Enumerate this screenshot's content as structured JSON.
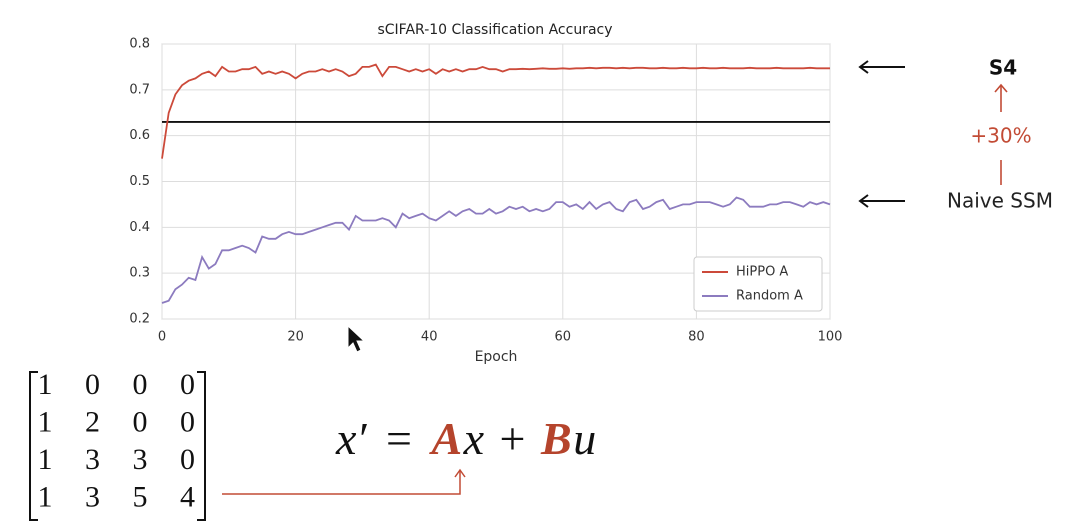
{
  "chart_data": {
    "type": "line",
    "title": "sCIFAR-10 Classification Accuracy",
    "x_label": "Epoch",
    "x": [
      0,
      1,
      2,
      3,
      4,
      5,
      6,
      7,
      8,
      9,
      10,
      11,
      12,
      13,
      14,
      15,
      16,
      17,
      18,
      19,
      20,
      21,
      22,
      23,
      24,
      25,
      26,
      27,
      28,
      29,
      30,
      31,
      32,
      33,
      34,
      35,
      36,
      37,
      38,
      39,
      40,
      41,
      42,
      43,
      44,
      45,
      46,
      47,
      48,
      49,
      50,
      51,
      52,
      53,
      54,
      55,
      56,
      57,
      58,
      59,
      60,
      61,
      62,
      63,
      64,
      65,
      66,
      67,
      68,
      69,
      70,
      71,
      72,
      73,
      74,
      75,
      76,
      77,
      78,
      79,
      80,
      81,
      82,
      83,
      84,
      85,
      86,
      87,
      88,
      89,
      90,
      91,
      92,
      93,
      94,
      95,
      96,
      97,
      98,
      99,
      100
    ],
    "series": [
      {
        "name": "HiPPO A",
        "color": "#cc4a3a",
        "values": [
          0.55,
          0.65,
          0.69,
          0.71,
          0.72,
          0.725,
          0.735,
          0.74,
          0.73,
          0.75,
          0.74,
          0.74,
          0.745,
          0.745,
          0.75,
          0.735,
          0.74,
          0.735,
          0.74,
          0.735,
          0.725,
          0.735,
          0.74,
          0.74,
          0.745,
          0.74,
          0.745,
          0.74,
          0.73,
          0.735,
          0.75,
          0.75,
          0.755,
          0.73,
          0.75,
          0.75,
          0.745,
          0.74,
          0.745,
          0.74,
          0.745,
          0.735,
          0.745,
          0.74,
          0.745,
          0.74,
          0.745,
          0.745,
          0.75,
          0.745,
          0.745,
          0.74,
          0.745,
          0.745,
          0.746,
          0.745,
          0.746,
          0.747,
          0.746,
          0.746,
          0.747,
          0.746,
          0.747,
          0.747,
          0.748,
          0.747,
          0.748,
          0.748,
          0.747,
          0.748,
          0.747,
          0.748,
          0.748,
          0.747,
          0.747,
          0.748,
          0.747,
          0.747,
          0.748,
          0.747,
          0.747,
          0.748,
          0.747,
          0.747,
          0.748,
          0.747,
          0.747,
          0.747,
          0.748,
          0.747,
          0.747,
          0.747,
          0.748,
          0.747,
          0.747,
          0.747,
          0.747,
          0.748,
          0.747,
          0.747,
          0.747
        ]
      },
      {
        "name": "Random A",
        "color": "#8c7bbf",
        "values": [
          0.235,
          0.24,
          0.265,
          0.275,
          0.29,
          0.285,
          0.335,
          0.31,
          0.32,
          0.35,
          0.35,
          0.355,
          0.36,
          0.355,
          0.345,
          0.38,
          0.375,
          0.375,
          0.385,
          0.39,
          0.385,
          0.385,
          0.39,
          0.395,
          0.4,
          0.405,
          0.41,
          0.41,
          0.395,
          0.425,
          0.415,
          0.415,
          0.415,
          0.42,
          0.415,
          0.4,
          0.43,
          0.42,
          0.425,
          0.43,
          0.42,
          0.415,
          0.425,
          0.435,
          0.425,
          0.435,
          0.44,
          0.43,
          0.43,
          0.44,
          0.43,
          0.435,
          0.445,
          0.44,
          0.445,
          0.435,
          0.44,
          0.435,
          0.44,
          0.455,
          0.455,
          0.445,
          0.45,
          0.44,
          0.455,
          0.44,
          0.45,
          0.455,
          0.44,
          0.435,
          0.455,
          0.46,
          0.44,
          0.445,
          0.455,
          0.46,
          0.44,
          0.445,
          0.45,
          0.45,
          0.455,
          0.455,
          0.455,
          0.45,
          0.445,
          0.45,
          0.465,
          0.46,
          0.445,
          0.445,
          0.445,
          0.45,
          0.45,
          0.455,
          0.455,
          0.45,
          0.445,
          0.455,
          0.45,
          0.455,
          0.45
        ]
      }
    ],
    "reference_line": 0.63,
    "reference_color": "#111111",
    "xlim": [
      0,
      100
    ],
    "xticks": [
      0,
      20,
      40,
      60,
      80,
      100
    ],
    "ylim": [
      0.2,
      0.8
    ],
    "yticks": [
      0.2,
      0.3,
      0.4,
      0.5,
      0.6,
      0.7,
      0.8
    ],
    "grid": true,
    "legend": "lower right"
  },
  "annotations": {
    "top_label": "S4",
    "improvement": "+30%",
    "bottom_label": "Naive SSM"
  },
  "matrix": [
    [
      1,
      0,
      0,
      0
    ],
    [
      1,
      2,
      0,
      0
    ],
    [
      1,
      3,
      3,
      0
    ],
    [
      1,
      3,
      5,
      4
    ]
  ],
  "equation": [
    "x′",
    "=",
    "A",
    "x",
    "+",
    "B",
    "u"
  ]
}
